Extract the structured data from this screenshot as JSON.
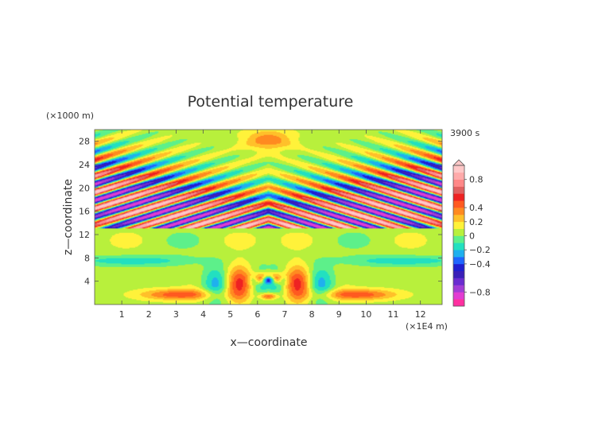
{
  "chart_data": {
    "type": "heatmap",
    "title": "Potential temperature",
    "xlabel": "x—coordinate",
    "ylabel": "z—coordinate",
    "x_unit": "(×1E4 m)",
    "y_unit": "(×1000 m)",
    "time_label": "3900 s",
    "xlim": [
      0,
      12.8
    ],
    "ylim": [
      0,
      30
    ],
    "x_ticks": [
      1,
      2,
      3,
      4,
      5,
      6,
      7,
      8,
      9,
      10,
      11,
      12
    ],
    "y_ticks": [
      4,
      8,
      12,
      16,
      20,
      24,
      28
    ],
    "colorbar": {
      "range": [
        -1.0,
        1.0
      ],
      "tick_values": [
        0.8,
        0.4,
        0.2,
        0,
        -0.2,
        -0.4,
        -0.8
      ],
      "tick_labels": [
        "0.8",
        "0.4",
        "0.2",
        "0",
        "−0.2",
        "−0.4",
        "−0.8"
      ],
      "levels": [
        {
          "lo": -1.0,
          "hi": -0.9,
          "color": "#ff2fa0"
        },
        {
          "lo": -0.9,
          "hi": -0.8,
          "color": "#e23cd2"
        },
        {
          "lo": -0.8,
          "hi": -0.7,
          "color": "#a23cd6"
        },
        {
          "lo": -0.7,
          "hi": -0.6,
          "color": "#6a2cd0"
        },
        {
          "lo": -0.6,
          "hi": -0.5,
          "color": "#3a1fb8"
        },
        {
          "lo": -0.5,
          "hi": -0.4,
          "color": "#1f1fd0"
        },
        {
          "lo": -0.4,
          "hi": -0.3,
          "color": "#1f66ff"
        },
        {
          "lo": -0.3,
          "hi": -0.2,
          "color": "#1fb0ee"
        },
        {
          "lo": -0.2,
          "hi": -0.1,
          "color": "#22e0c0"
        },
        {
          "lo": -0.1,
          "hi": 0.0,
          "color": "#5df08a"
        },
        {
          "lo": 0.0,
          "hi": 0.1,
          "color": "#b8f03c"
        },
        {
          "lo": 0.1,
          "hi": 0.2,
          "color": "#fff23a"
        },
        {
          "lo": 0.2,
          "hi": 0.3,
          "color": "#ffc02a"
        },
        {
          "lo": 0.3,
          "hi": 0.4,
          "color": "#ff8a20"
        },
        {
          "lo": 0.4,
          "hi": 0.5,
          "color": "#ff5a20"
        },
        {
          "lo": 0.5,
          "hi": 0.6,
          "color": "#ee2222"
        },
        {
          "lo": 0.6,
          "hi": 0.7,
          "color": "#e06060"
        },
        {
          "lo": 0.7,
          "hi": 0.8,
          "color": "#ff8888"
        },
        {
          "lo": 0.8,
          "hi": 0.9,
          "color": "#ffaaaa"
        },
        {
          "lo": 0.9,
          "hi": 1.0,
          "color": "#ffc8c8"
        }
      ]
    }
  }
}
